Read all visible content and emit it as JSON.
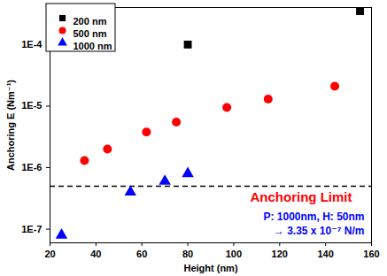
{
  "chart_data": {
    "type": "scatter",
    "x_label": "Height (nm)",
    "y_label": "Anchoring E (Nm⁻¹)",
    "log": "y",
    "grid": false,
    "legend": "top-left",
    "xlim": [
      20,
      160
    ],
    "xticks": [
      20,
      40,
      60,
      80,
      100,
      120,
      140,
      160
    ],
    "ylim": [
      6e-08,
      0.0004
    ],
    "yticks": [
      {
        "value": 1e-07,
        "label": "1E-7"
      },
      {
        "value": 1e-06,
        "label": "1E-6"
      },
      {
        "value": 1e-05,
        "label": "1E-5"
      },
      {
        "value": 0.0001,
        "label": "1E-4"
      }
    ],
    "series": [
      {
        "name": "200 nm",
        "color": "#000000",
        "marker": "square",
        "x": [
          80,
          155
        ],
        "values": [
          0.0001,
          0.00035
        ]
      },
      {
        "name": "500 nm",
        "color": "#ff0000",
        "marker": "circle",
        "x": [
          35,
          45,
          62,
          75,
          97,
          115,
          144
        ],
        "values": [
          1.3e-06,
          2e-06,
          3.8e-06,
          5.5e-06,
          9.5e-06,
          1.3e-05,
          2.1e-05
        ]
      },
      {
        "name": "1000 nm",
        "color": "#0000ff",
        "marker": "triangle",
        "x": [
          25,
          55,
          70,
          80
        ],
        "values": [
          8e-08,
          4e-07,
          6e-07,
          8e-07
        ]
      }
    ],
    "reference_line": {
      "value": 5e-07,
      "label": "Anchoring Limit",
      "color": "#ff0000",
      "line_style": "dashed"
    },
    "annotations": [
      {
        "text": "P: 1000nm, H: 50nm",
        "color": "#0000ff"
      },
      {
        "text": "→ 3.35 x 10⁻⁷ N/m",
        "color": "#0000ff"
      }
    ]
  }
}
